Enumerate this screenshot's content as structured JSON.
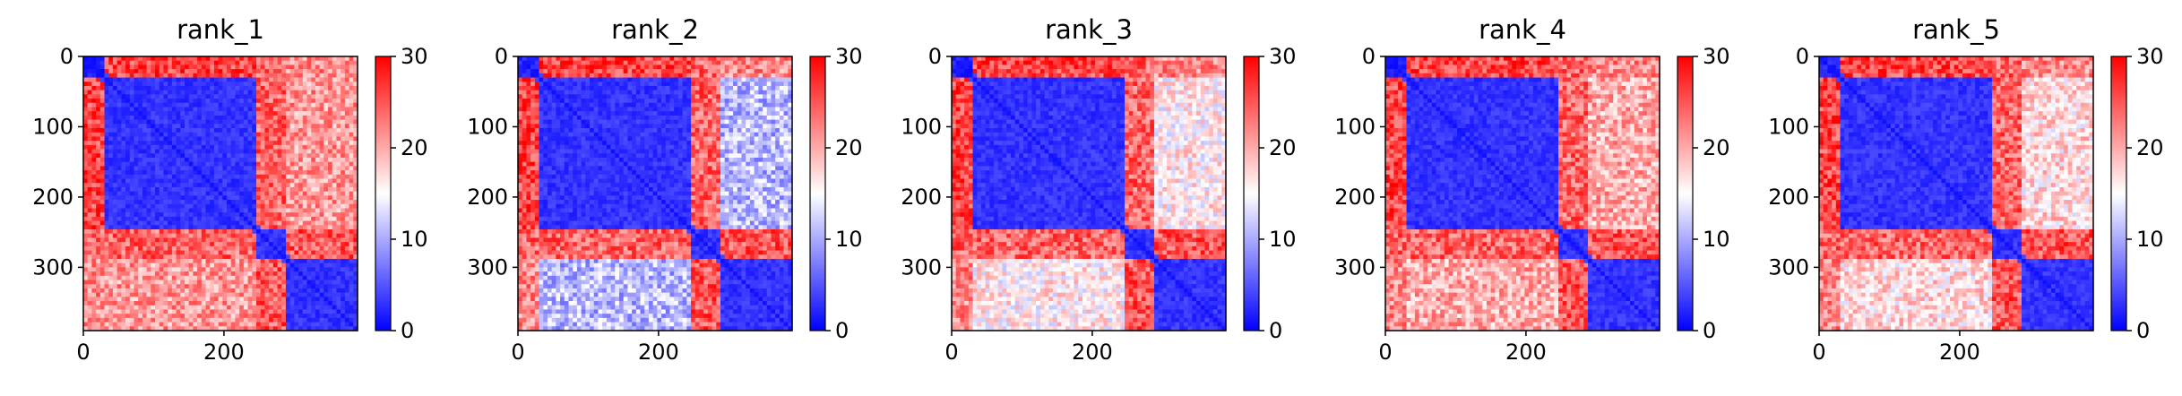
{
  "chart_data": [
    {
      "type": "heatmap",
      "title": "rank_1",
      "x_ticks": [
        0,
        200
      ],
      "y_ticks": [
        0,
        100,
        200,
        300
      ],
      "xlim": [
        0,
        390
      ],
      "ylim": [
        390,
        0
      ],
      "colorbar": {
        "ticks": [
          0,
          10,
          20,
          30
        ],
        "range": [
          0,
          30
        ],
        "colormap": "bwr"
      },
      "blocks": [
        [
          0,
          30
        ],
        [
          30,
          245
        ],
        [
          245,
          290
        ],
        [
          290,
          390
        ]
      ],
      "block_means": [
        [
          2,
          26,
          24,
          22
        ],
        [
          26,
          3,
          24,
          21
        ],
        [
          24,
          24,
          3,
          25
        ],
        [
          22,
          21,
          25,
          3
        ]
      ]
    },
    {
      "type": "heatmap",
      "title": "rank_2",
      "x_ticks": [
        0,
        200
      ],
      "y_ticks": [
        0,
        100,
        200,
        300
      ],
      "xlim": [
        0,
        390
      ],
      "ylim": [
        390,
        0
      ],
      "colorbar": {
        "ticks": [
          0,
          10,
          20,
          30
        ],
        "range": [
          0,
          30
        ],
        "colormap": "bwr"
      },
      "blocks": [
        [
          0,
          30
        ],
        [
          30,
          245
        ],
        [
          245,
          290
        ],
        [
          290,
          390
        ]
      ],
      "block_means": [
        [
          2,
          26,
          24,
          22
        ],
        [
          26,
          3,
          24,
          11
        ],
        [
          24,
          24,
          3,
          25
        ],
        [
          22,
          11,
          25,
          3
        ]
      ]
    },
    {
      "type": "heatmap",
      "title": "rank_3",
      "x_ticks": [
        0,
        200
      ],
      "y_ticks": [
        0,
        100,
        200,
        300
      ],
      "xlim": [
        0,
        390
      ],
      "ylim": [
        390,
        0
      ],
      "colorbar": {
        "ticks": [
          0,
          10,
          20,
          30
        ],
        "range": [
          0,
          30
        ],
        "colormap": "bwr"
      },
      "blocks": [
        [
          0,
          30
        ],
        [
          30,
          245
        ],
        [
          245,
          290
        ],
        [
          290,
          390
        ]
      ],
      "block_means": [
        [
          2,
          26,
          24,
          22
        ],
        [
          26,
          3,
          24,
          16
        ],
        [
          24,
          24,
          3,
          25
        ],
        [
          22,
          16,
          25,
          3
        ]
      ]
    },
    {
      "type": "heatmap",
      "title": "rank_4",
      "x_ticks": [
        0,
        200
      ],
      "y_ticks": [
        0,
        100,
        200,
        300
      ],
      "xlim": [
        0,
        390
      ],
      "ylim": [
        390,
        0
      ],
      "colorbar": {
        "ticks": [
          0,
          10,
          20,
          30
        ],
        "range": [
          0,
          30
        ],
        "colormap": "bwr"
      },
      "blocks": [
        [
          0,
          30
        ],
        [
          30,
          245
        ],
        [
          245,
          290
        ],
        [
          290,
          390
        ]
      ],
      "block_means": [
        [
          2,
          26,
          24,
          22
        ],
        [
          26,
          3,
          24,
          20
        ],
        [
          24,
          24,
          3,
          25
        ],
        [
          22,
          20,
          25,
          3
        ]
      ]
    },
    {
      "type": "heatmap",
      "title": "rank_5",
      "x_ticks": [
        0,
        200
      ],
      "y_ticks": [
        0,
        100,
        200,
        300
      ],
      "xlim": [
        0,
        390
      ],
      "ylim": [
        390,
        0
      ],
      "colorbar": {
        "ticks": [
          0,
          10,
          20,
          30
        ],
        "range": [
          0,
          30
        ],
        "colormap": "bwr"
      },
      "blocks": [
        [
          0,
          30
        ],
        [
          30,
          245
        ],
        [
          245,
          290
        ],
        [
          290,
          390
        ]
      ],
      "block_means": [
        [
          2,
          26,
          24,
          22
        ],
        [
          26,
          3,
          24,
          17
        ],
        [
          24,
          24,
          3,
          25
        ],
        [
          22,
          17,
          25,
          3
        ]
      ]
    }
  ]
}
